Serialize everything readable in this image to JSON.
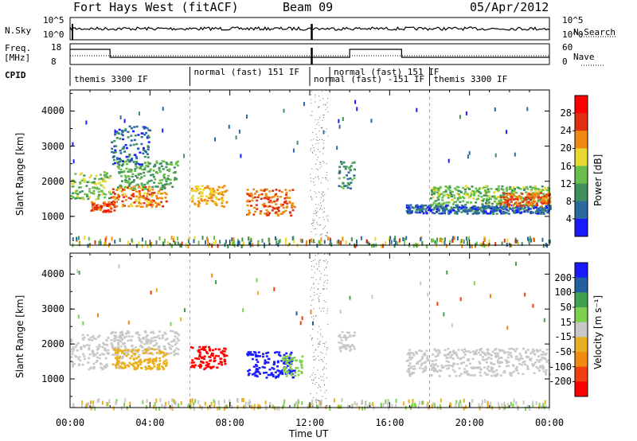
{
  "header": {
    "station": "Fort Hays West (fitACF)",
    "beam": "Beam 09",
    "date": "05/Apr/2012"
  },
  "strip": {
    "nsky_label": "N.Sky",
    "nsky_ticks": [
      "10^5",
      "10^0"
    ],
    "nsearch_label": "N.Search",
    "nsearch_ticks": [
      "10^5",
      "10^0"
    ],
    "freq_label_1": "Freq.",
    "freq_label_2": "[MHz]",
    "freq_ticks": [
      "18",
      "8"
    ],
    "nave_label": "Nave",
    "nave_ticks": [
      "60",
      "0"
    ],
    "cpid_label": "CPID"
  },
  "cpid_segments": [
    {
      "label": "themis 3300 IF",
      "start_h": 0.0,
      "end_h": 6.0
    },
    {
      "label": "normal (fast) 151 IF",
      "start_h": 6.0,
      "end_h": 12.0
    },
    {
      "label": "normal (fast) -151 IF",
      "start_h": 12.0,
      "end_h": 13.0
    },
    {
      "label": "normal (fast) 151 IF",
      "start_h": 13.0,
      "end_h": 18.0
    },
    {
      "label": "themis 3300 IF",
      "start_h": 18.0,
      "end_h": 24.0
    }
  ],
  "chart_data": [
    {
      "type": "heatmap",
      "name": "power",
      "xlabel": "Time UT",
      "ylabel": "Slant Range [km]",
      "x_ticks": [
        "00:00",
        "04:00",
        "08:00",
        "12:00",
        "16:00",
        "20:00",
        "00:00"
      ],
      "xlim": [
        0,
        24
      ],
      "y_ticks": [
        "1000",
        "2000",
        "3000",
        "4000"
      ],
      "ylim": [
        180,
        4600
      ],
      "colorbar": {
        "label": "Power [dB]",
        "ticks": [
          "4",
          "8",
          "12",
          "16",
          "20",
          "24",
          "28"
        ],
        "range": [
          0,
          32
        ],
        "colors": [
          "#1a1aff",
          "#2a6aa0",
          "#3f8f5f",
          "#6abf4a",
          "#e8d830",
          "#f08a10",
          "#e03010",
          "#ff0000"
        ]
      },
      "regions": [
        {
          "t0": 0.0,
          "t1": 2.0,
          "r0": 1500,
          "r1": 2300,
          "value": 14
        },
        {
          "t0": 1.0,
          "t1": 2.2,
          "r0": 1150,
          "r1": 1450,
          "value": 26
        },
        {
          "t0": 2.0,
          "t1": 4.8,
          "r0": 1300,
          "r1": 1900,
          "value": 22
        },
        {
          "t0": 2.3,
          "t1": 5.4,
          "r0": 1800,
          "r1": 2600,
          "value": 12
        },
        {
          "t0": 2.0,
          "t1": 4.0,
          "r0": 2500,
          "r1": 3600,
          "value": 6
        },
        {
          "t0": 6.0,
          "t1": 7.8,
          "r0": 1300,
          "r1": 1900,
          "value": 20
        },
        {
          "t0": 8.8,
          "t1": 11.2,
          "r0": 1050,
          "r1": 1800,
          "value": 24
        },
        {
          "t0": 13.4,
          "t1": 14.2,
          "r0": 1800,
          "r1": 2600,
          "value": 10
        },
        {
          "t0": 16.8,
          "t1": 24.0,
          "r0": 1100,
          "r1": 1350,
          "value": 6
        },
        {
          "t0": 18.0,
          "t1": 24.0,
          "r0": 1350,
          "r1": 1900,
          "value": 14
        },
        {
          "t0": 21.5,
          "t1": 24.0,
          "r0": 1300,
          "r1": 1700,
          "value": 24
        }
      ]
    },
    {
      "type": "heatmap",
      "name": "velocity",
      "xlabel": "Time UT",
      "ylabel": "Slant Range [km]",
      "x_ticks": [
        "00:00",
        "04:00",
        "08:00",
        "12:00",
        "16:00",
        "20:00",
        "00:00"
      ],
      "xlim": [
        0,
        24
      ],
      "y_ticks": [
        "1000",
        "2000",
        "3000",
        "4000"
      ],
      "ylim": [
        180,
        4600
      ],
      "colorbar": {
        "label": "Velocity [m s⁻¹]",
        "ticks": [
          "200",
          "100",
          "50",
          "15",
          "-15",
          "-50",
          "-100",
          "-200"
        ],
        "range": [
          -250,
          250
        ],
        "colors": [
          "#ff0000",
          "#f04010",
          "#f08a10",
          "#e8b020",
          "#c8c8c8",
          "#80d050",
          "#3fa050",
          "#2060a0",
          "#1a1aff"
        ]
      },
      "regions": [
        {
          "t0": 0.0,
          "t1": 2.6,
          "r0": 1300,
          "r1": 2300,
          "value": 0
        },
        {
          "t0": 2.0,
          "t1": 5.4,
          "r0": 1700,
          "r1": 2400,
          "value": 0
        },
        {
          "t0": 2.0,
          "t1": 4.8,
          "r0": 1300,
          "r1": 1900,
          "value": -60
        },
        {
          "t0": 6.0,
          "t1": 7.8,
          "r0": 1300,
          "r1": 1950,
          "value": -240
        },
        {
          "t0": 8.8,
          "t1": 11.2,
          "r0": 1050,
          "r1": 1800,
          "value": 230
        },
        {
          "t0": 10.6,
          "t1": 11.6,
          "r0": 1100,
          "r1": 1700,
          "value": 60
        },
        {
          "t0": 13.4,
          "t1": 14.2,
          "r0": 1800,
          "r1": 2400,
          "value": 0
        },
        {
          "t0": 16.8,
          "t1": 24.0,
          "r0": 1100,
          "r1": 1900,
          "value": 0
        }
      ]
    }
  ]
}
